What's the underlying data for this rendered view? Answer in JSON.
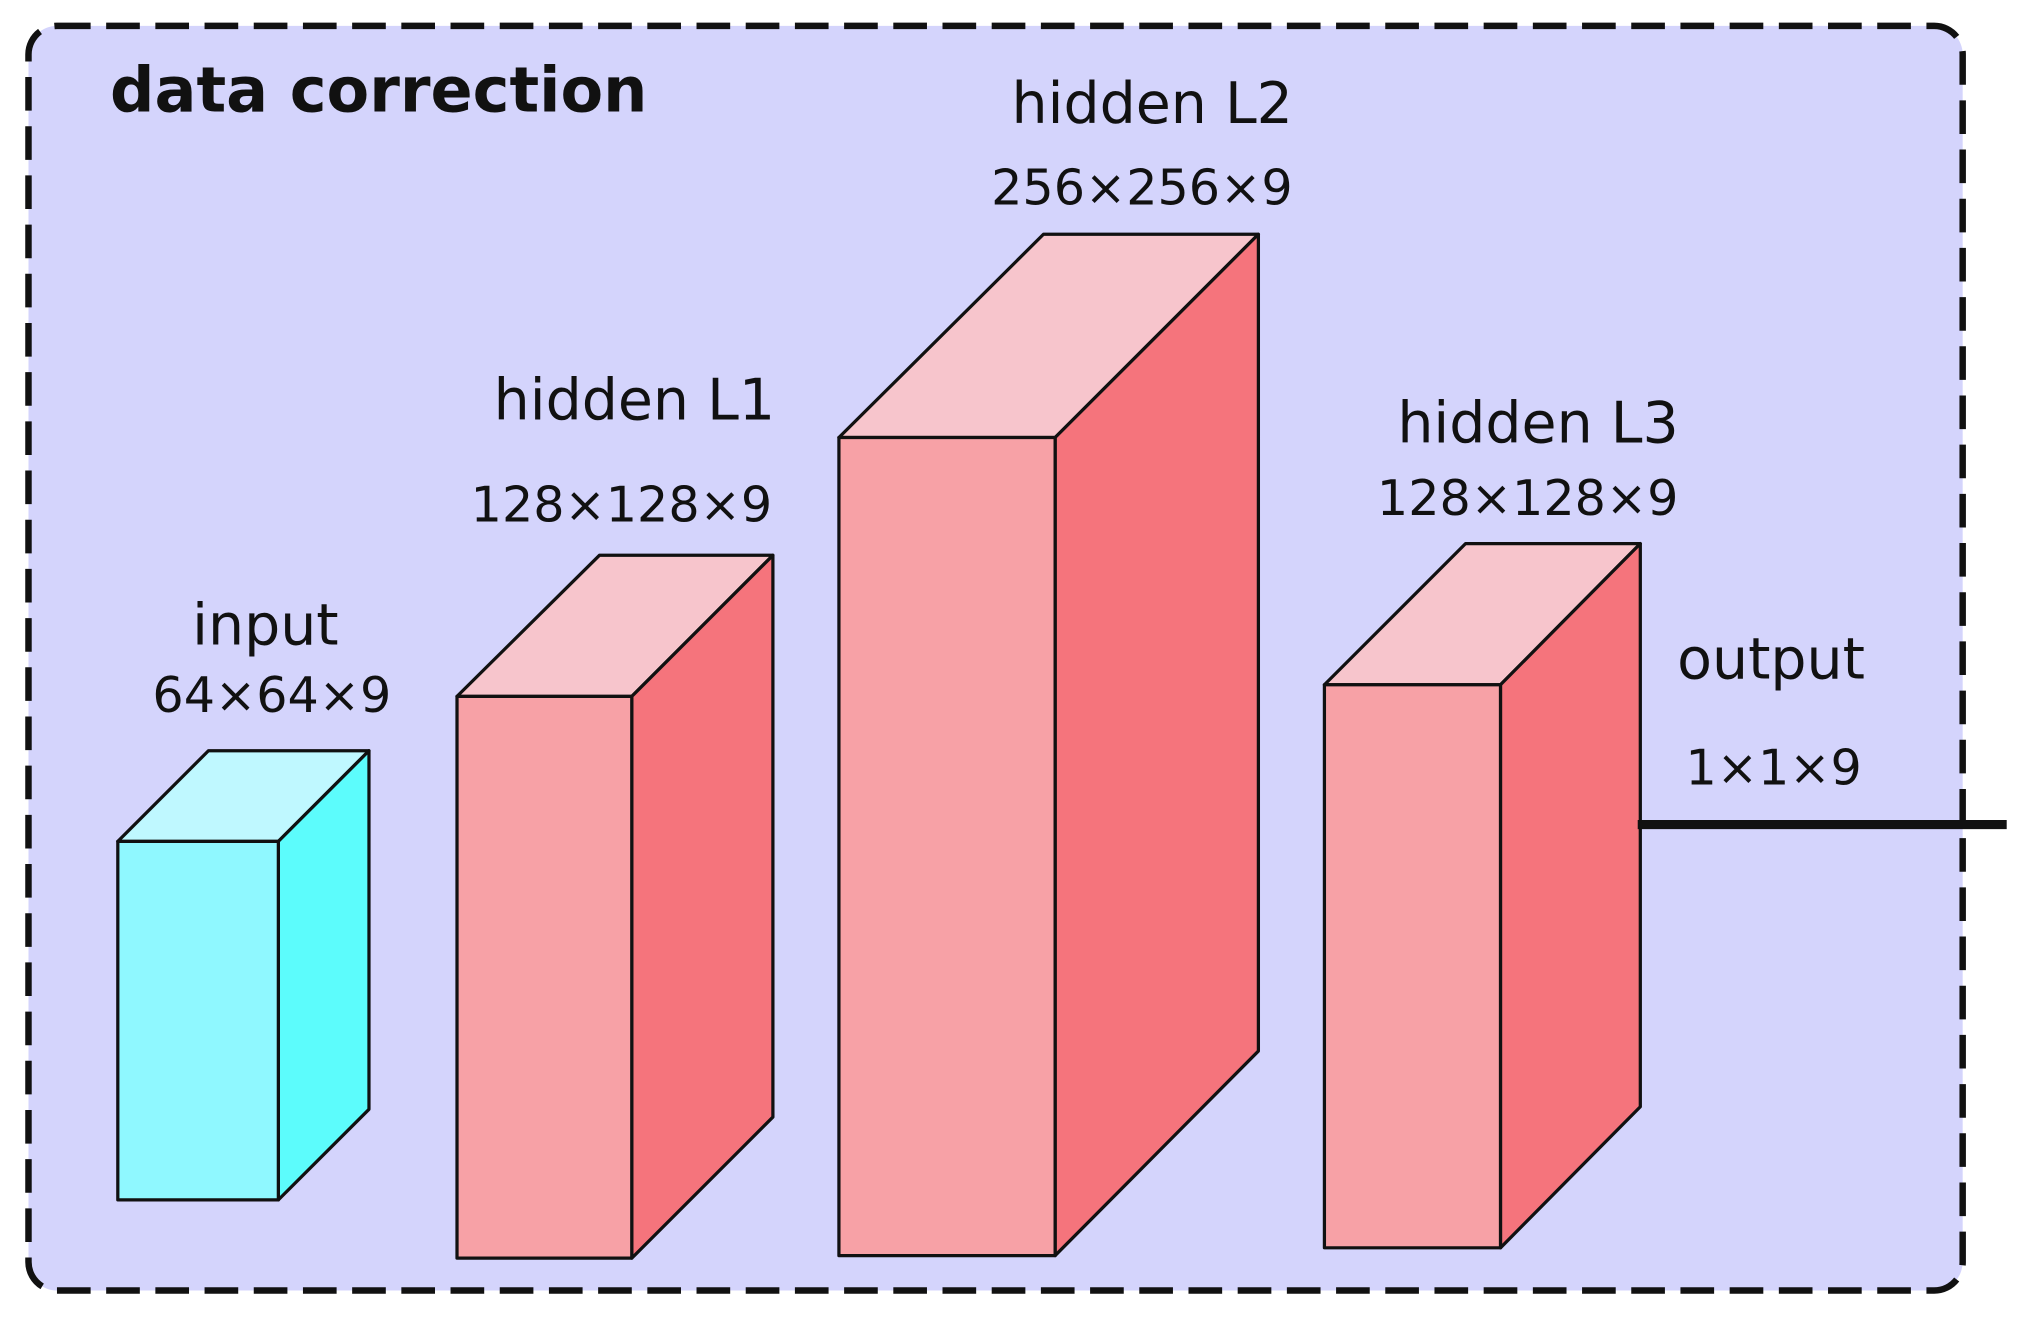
{
  "title": "data correction",
  "layers": [
    {
      "label": "input",
      "size": "64×64×9"
    },
    {
      "label": "hidden L1",
      "size": "128×128×9"
    },
    {
      "label": "hidden L2",
      "size": "256×256×9"
    },
    {
      "label": "hidden L3",
      "size": "128×128×9"
    },
    {
      "label": "output",
      "size": "1×1×9"
    }
  ]
}
